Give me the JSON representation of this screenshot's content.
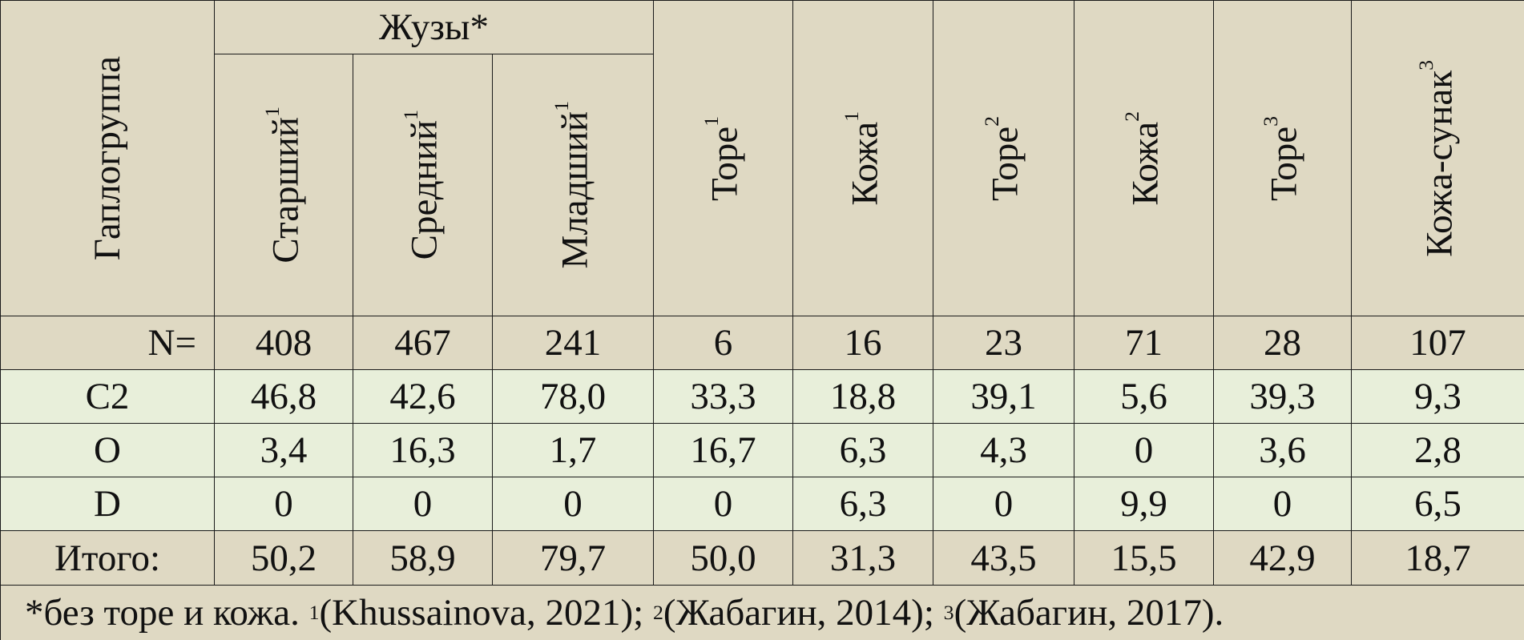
{
  "header": {
    "corner": "Гаплогруппа",
    "group": "Жузы*",
    "columns": [
      {
        "label": "Старший",
        "sup": "1"
      },
      {
        "label": "Средний",
        "sup": "1"
      },
      {
        "label": "Младший",
        "sup": "1"
      },
      {
        "label": "Торе",
        "sup": "1"
      },
      {
        "label": "Кожа",
        "sup": "1"
      },
      {
        "label": "Торе",
        "sup": "2"
      },
      {
        "label": "Кожа",
        "sup": "2"
      },
      {
        "label": "Торе",
        "sup": "3"
      },
      {
        "label": "Кожа-сунак",
        "sup": "3"
      }
    ]
  },
  "rows": [
    {
      "label": "N=",
      "values": [
        "408",
        "467",
        "241",
        "6",
        "16",
        "23",
        "71",
        "28",
        "107"
      ]
    },
    {
      "label": "C2",
      "values": [
        "46,8",
        "42,6",
        "78,0",
        "33,3",
        "18,8",
        "39,1",
        "5,6",
        "39,3",
        "9,3"
      ]
    },
    {
      "label": "O",
      "values": [
        "3,4",
        "16,3",
        "1,7",
        "16,7",
        "6,3",
        "4,3",
        "0",
        "3,6",
        "2,8"
      ]
    },
    {
      "label": "D",
      "values": [
        "0",
        "0",
        "0",
        "0",
        "6,3",
        "0",
        "9,9",
        "0",
        "6,5"
      ]
    },
    {
      "label": "Итого:",
      "values": [
        "50,2",
        "58,9",
        "79,7",
        "50,0",
        "31,3",
        "43,5",
        "15,5",
        "42,9",
        "18,7"
      ]
    }
  ],
  "footnote": [
    {
      "text": "*без торе и кожа. "
    },
    {
      "sup": "1"
    },
    {
      "text": "(Khussainova, 2021); "
    },
    {
      "sup": "2"
    },
    {
      "text": "(Жабагин, 2014); "
    },
    {
      "sup": "3"
    },
    {
      "text": "(Жабагин, 2017)."
    }
  ]
}
